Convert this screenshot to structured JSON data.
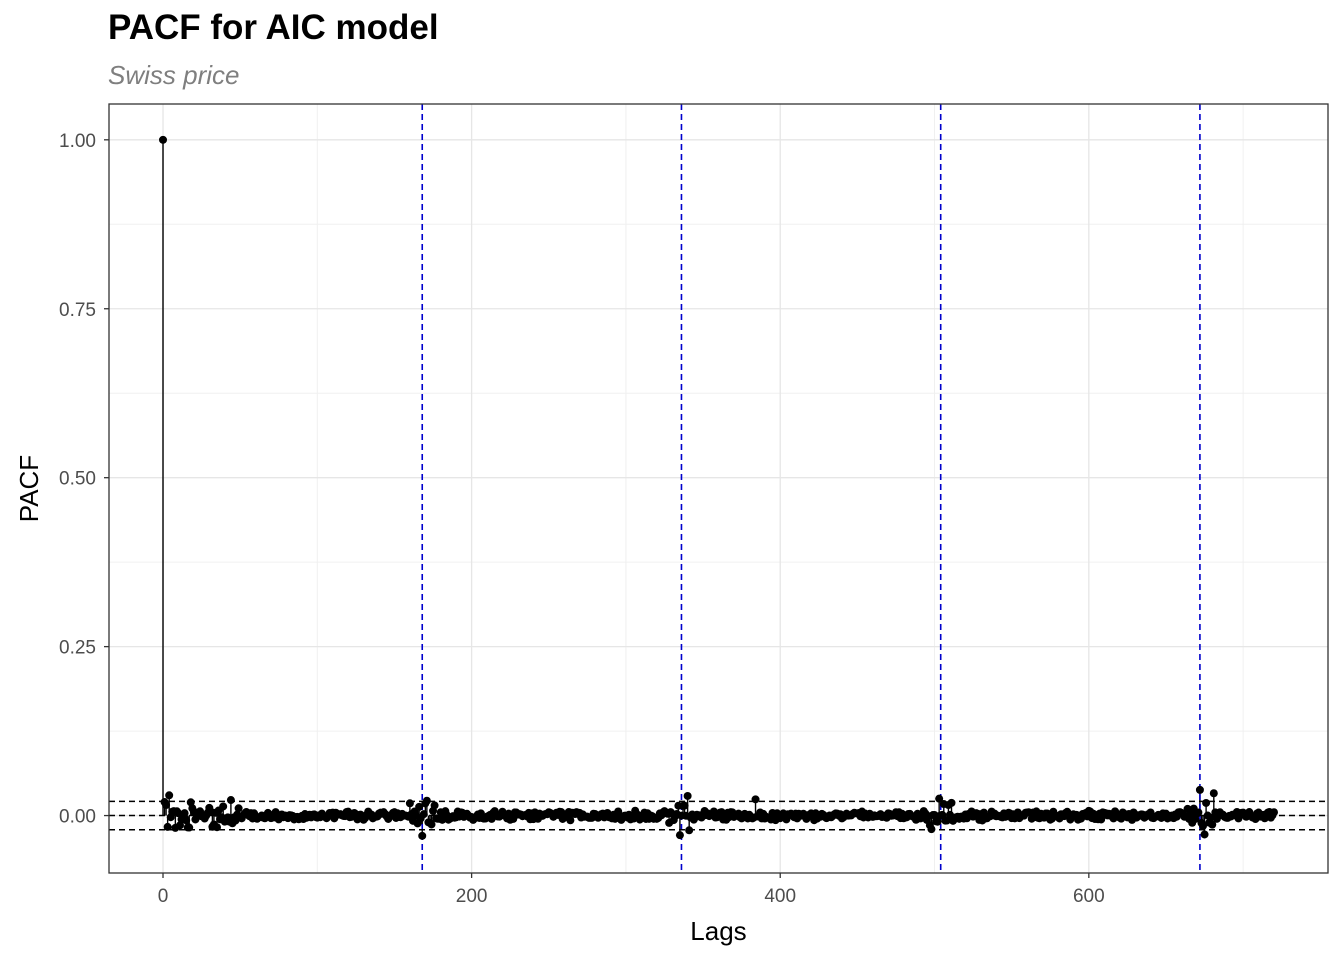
{
  "chart_data": {
    "type": "line",
    "title": "PACF for AIC model",
    "subtitle": "Swiss price",
    "xlabel": "Lags",
    "ylabel": "PACF",
    "xlim": [
      -35,
      755
    ],
    "ylim": [
      -0.085,
      1.053
    ],
    "x_ticks": [
      0,
      200,
      400,
      600
    ],
    "x_tick_labels": [
      "0",
      "200",
      "400",
      "600"
    ],
    "y_ticks": [
      0.0,
      0.25,
      0.5,
      0.75,
      1.0
    ],
    "y_tick_labels": [
      "0.00",
      "0.25",
      "0.50",
      "0.75",
      "1.00"
    ],
    "grid": true,
    "seasonal_lags": [
      168,
      336,
      504,
      672
    ],
    "seasonal_line_color": "#0000cc",
    "confidence_bounds": [
      -0.021,
      0.021
    ],
    "lag0_value": 1.0,
    "max_lag": 720,
    "point_color": "#000000"
  }
}
